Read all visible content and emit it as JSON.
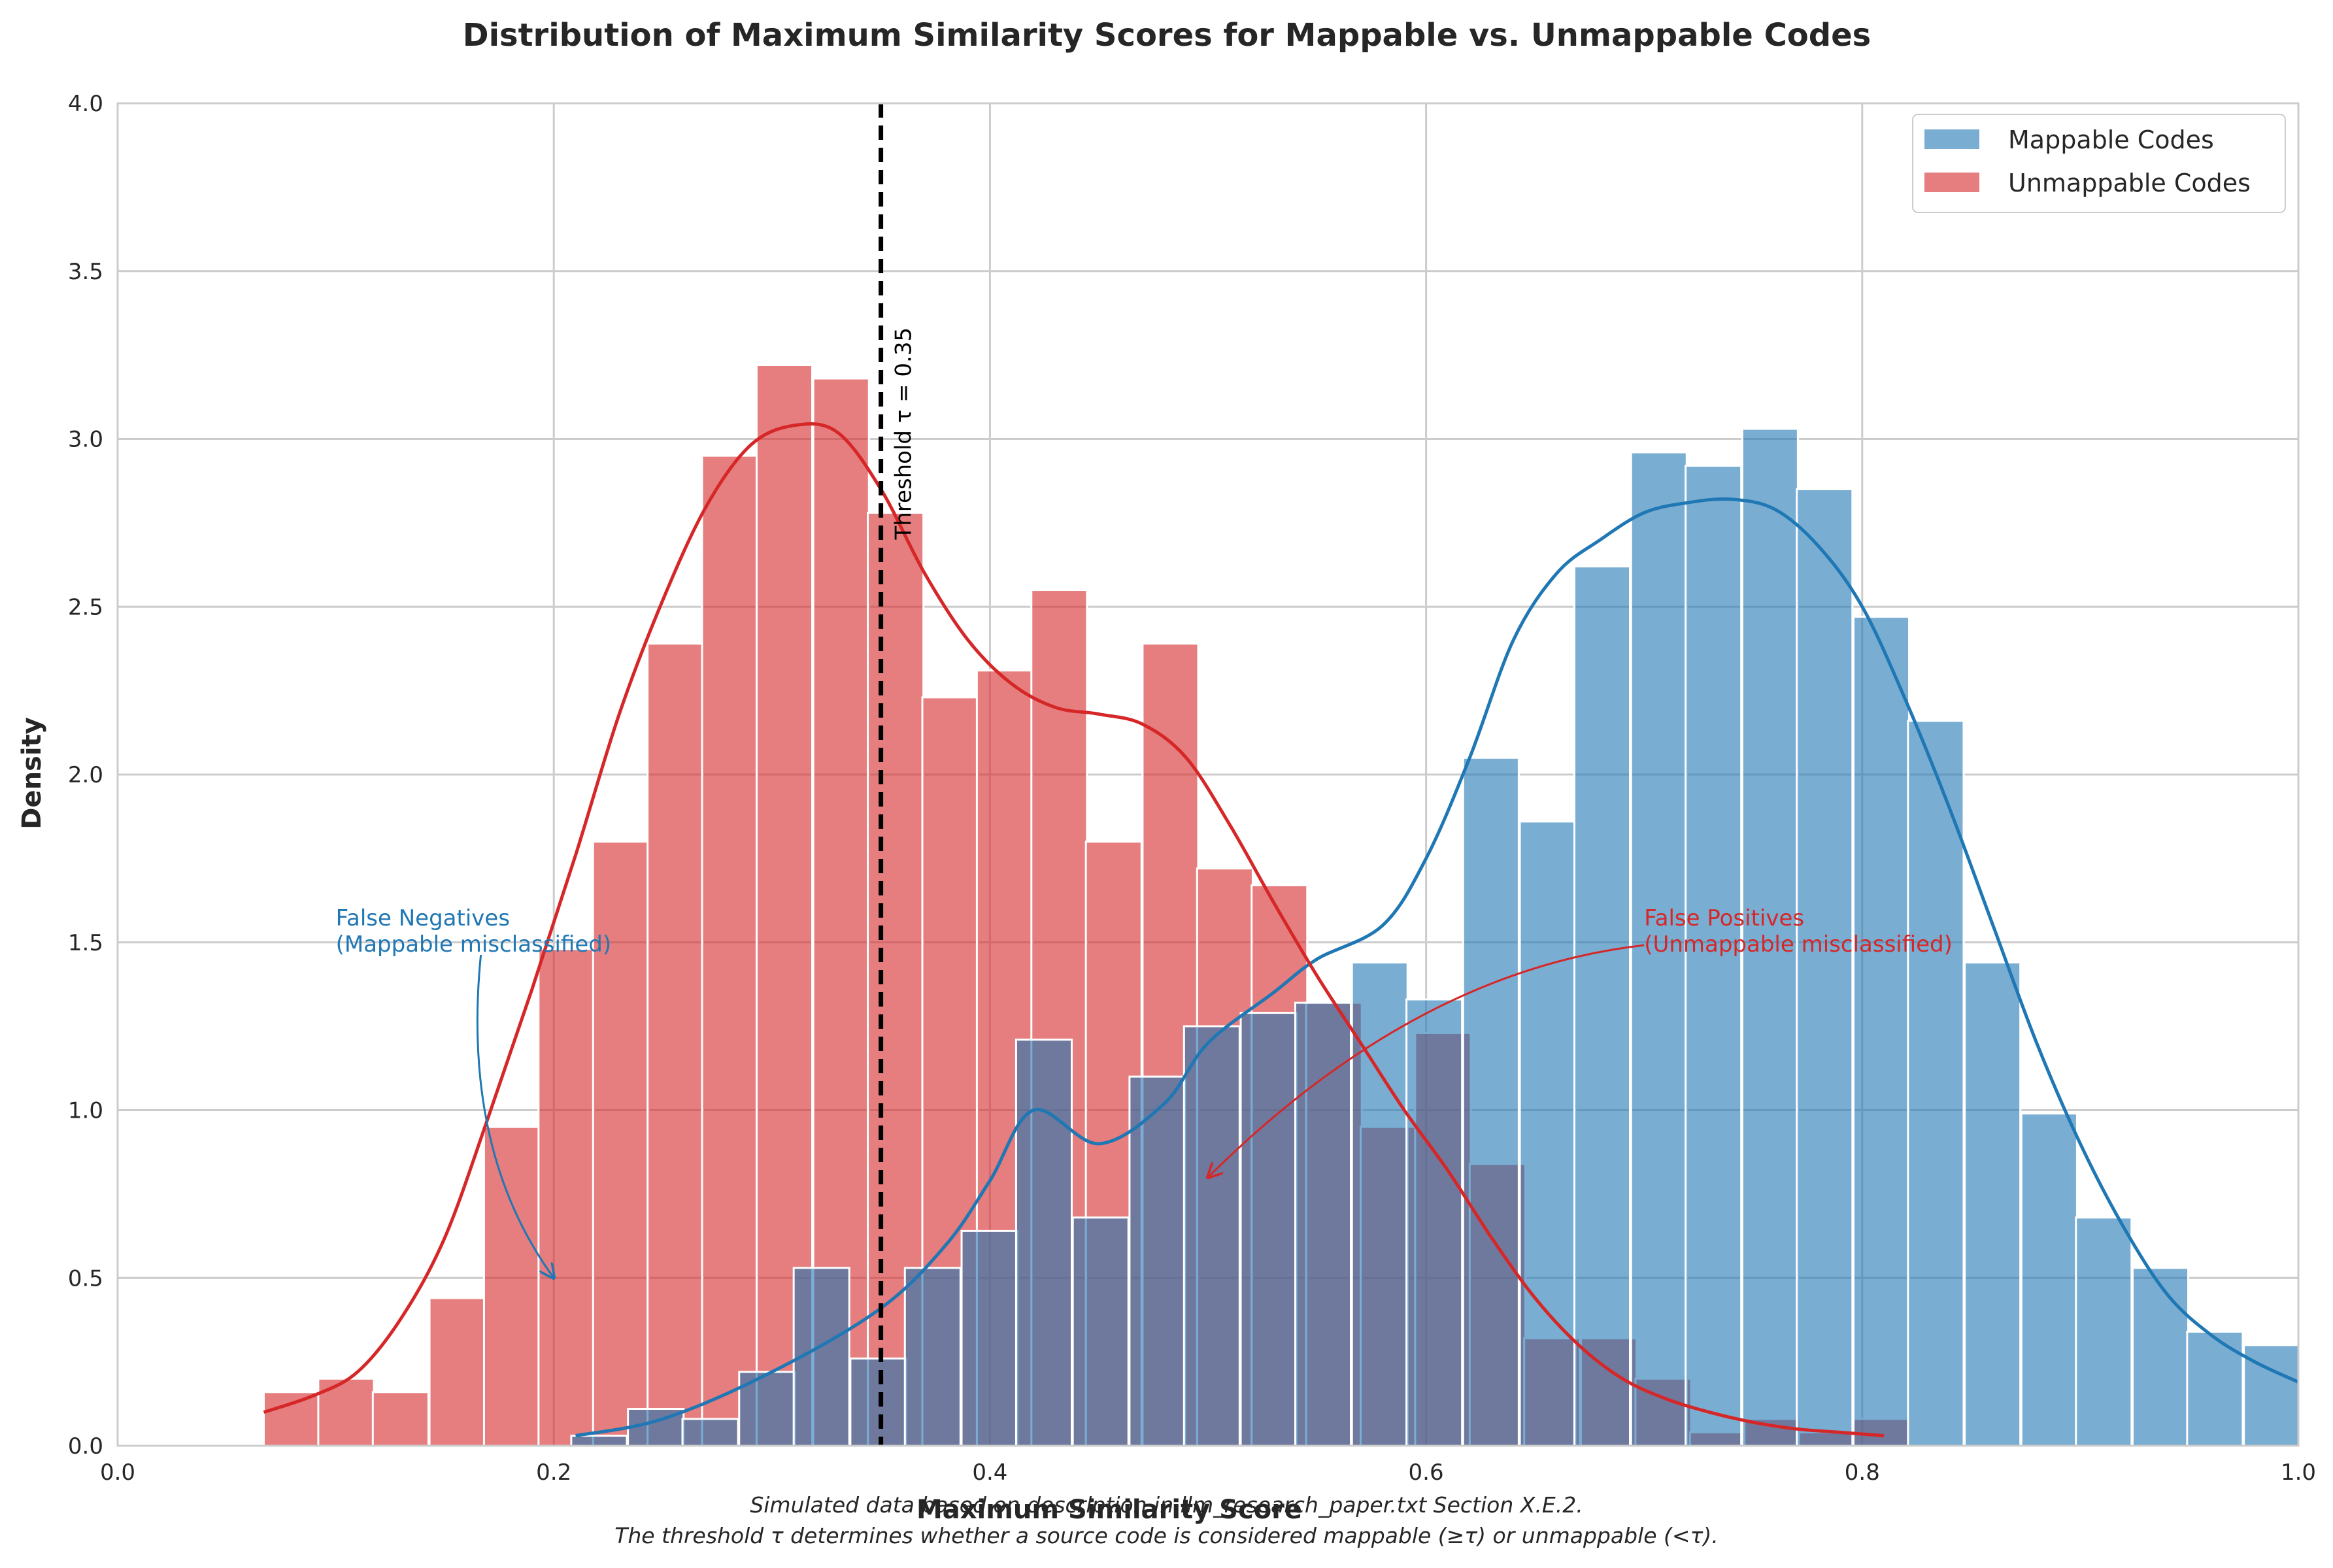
{
  "chart_data": {
    "type": "histogram",
    "title": "Distribution of Maximum Similarity Scores for Mappable vs. Unmappable Codes",
    "xlabel": "Maximum Similarity Score",
    "ylabel": "Density",
    "xlim": [
      0.0,
      1.0
    ],
    "ylim": [
      0.0,
      4.0
    ],
    "x_ticks": [
      "0.0",
      "0.2",
      "0.4",
      "0.6",
      "0.8",
      "1.0"
    ],
    "y_ticks": [
      "0.0",
      "0.5",
      "1.0",
      "1.5",
      "2.0",
      "2.5",
      "3.0",
      "3.5",
      "4.0"
    ],
    "grid": true,
    "legend_position": "top-right",
    "bin_width": 0.0255,
    "series": [
      {
        "name": "Mappable Codes",
        "color": "#1f77b4",
        "bar_alpha": 0.6,
        "bins_start": [
          0.208,
          0.234,
          0.259,
          0.285,
          0.31,
          0.336,
          0.361,
          0.387,
          0.412,
          0.438,
          0.464,
          0.489,
          0.515,
          0.54,
          0.566,
          0.591,
          0.617,
          0.643,
          0.668,
          0.694,
          0.719,
          0.745,
          0.77,
          0.796,
          0.821,
          0.847,
          0.873,
          0.898,
          0.924,
          0.949,
          0.975
        ],
        "density": [
          0.03,
          0.11,
          0.08,
          0.22,
          0.53,
          0.26,
          0.53,
          0.64,
          1.21,
          0.68,
          1.1,
          1.25,
          1.29,
          1.32,
          1.44,
          1.33,
          2.05,
          1.86,
          2.62,
          2.96,
          2.92,
          3.03,
          2.85,
          2.47,
          2.16,
          1.44,
          0.99,
          0.68,
          0.53,
          0.34,
          0.3
        ],
        "kde": [
          [
            0.21,
            0.03
          ],
          [
            0.25,
            0.08
          ],
          [
            0.3,
            0.22
          ],
          [
            0.35,
            0.41
          ],
          [
            0.38,
            0.6
          ],
          [
            0.4,
            0.79
          ],
          [
            0.42,
            1.0
          ],
          [
            0.45,
            0.9
          ],
          [
            0.48,
            1.02
          ],
          [
            0.5,
            1.2
          ],
          [
            0.53,
            1.35
          ],
          [
            0.55,
            1.45
          ],
          [
            0.58,
            1.55
          ],
          [
            0.6,
            1.75
          ],
          [
            0.62,
            2.05
          ],
          [
            0.64,
            2.4
          ],
          [
            0.66,
            2.6
          ],
          [
            0.68,
            2.7
          ],
          [
            0.7,
            2.78
          ],
          [
            0.72,
            2.81
          ],
          [
            0.74,
            2.82
          ],
          [
            0.76,
            2.79
          ],
          [
            0.78,
            2.68
          ],
          [
            0.8,
            2.5
          ],
          [
            0.82,
            2.22
          ],
          [
            0.84,
            1.9
          ],
          [
            0.86,
            1.55
          ],
          [
            0.88,
            1.2
          ],
          [
            0.9,
            0.9
          ],
          [
            0.92,
            0.65
          ],
          [
            0.94,
            0.45
          ],
          [
            0.96,
            0.33
          ],
          [
            0.98,
            0.25
          ],
          [
            1.0,
            0.19
          ]
        ]
      },
      {
        "name": "Unmappable Codes",
        "color": "#d62728",
        "bar_alpha": 0.6,
        "bins_start": [
          0.067,
          0.092,
          0.117,
          0.143,
          0.168,
          0.193,
          0.218,
          0.243,
          0.268,
          0.293,
          0.319,
          0.344,
          0.369,
          0.394,
          0.419,
          0.444,
          0.47,
          0.495,
          0.52,
          0.545,
          0.57,
          0.595,
          0.62,
          0.645,
          0.671,
          0.696,
          0.721,
          0.746,
          0.771,
          0.796
        ],
        "density": [
          0.16,
          0.2,
          0.16,
          0.44,
          0.95,
          1.48,
          1.8,
          2.39,
          2.95,
          3.22,
          3.18,
          2.78,
          2.23,
          2.31,
          2.55,
          1.8,
          2.39,
          1.72,
          1.67,
          1.32,
          0.95,
          1.23,
          0.84,
          0.32,
          0.32,
          0.2,
          0.04,
          0.08,
          0.04,
          0.08
        ],
        "kde": [
          [
            0.067,
            0.1
          ],
          [
            0.09,
            0.15
          ],
          [
            0.11,
            0.22
          ],
          [
            0.13,
            0.38
          ],
          [
            0.15,
            0.62
          ],
          [
            0.17,
            0.98
          ],
          [
            0.19,
            1.36
          ],
          [
            0.21,
            1.76
          ],
          [
            0.23,
            2.18
          ],
          [
            0.25,
            2.52
          ],
          [
            0.27,
            2.8
          ],
          [
            0.29,
            2.98
          ],
          [
            0.31,
            3.04
          ],
          [
            0.33,
            3.02
          ],
          [
            0.35,
            2.85
          ],
          [
            0.37,
            2.6
          ],
          [
            0.39,
            2.4
          ],
          [
            0.41,
            2.27
          ],
          [
            0.43,
            2.2
          ],
          [
            0.45,
            2.18
          ],
          [
            0.47,
            2.15
          ],
          [
            0.49,
            2.05
          ],
          [
            0.51,
            1.85
          ],
          [
            0.53,
            1.62
          ],
          [
            0.55,
            1.4
          ],
          [
            0.57,
            1.2
          ],
          [
            0.59,
            1.0
          ],
          [
            0.61,
            0.82
          ],
          [
            0.63,
            0.62
          ],
          [
            0.65,
            0.44
          ],
          [
            0.67,
            0.3
          ],
          [
            0.69,
            0.2
          ],
          [
            0.71,
            0.14
          ],
          [
            0.73,
            0.1
          ],
          [
            0.75,
            0.07
          ],
          [
            0.77,
            0.05
          ],
          [
            0.79,
            0.04
          ],
          [
            0.81,
            0.03
          ]
        ]
      }
    ],
    "threshold": {
      "value": 0.35,
      "label": "Threshold τ = 0.35"
    },
    "annotations": [
      {
        "text_lines": [
          "False Negatives",
          "(Mappable misclassified)"
        ],
        "color": "#1f77b4",
        "text_xy": [
          0.1,
          1.55
        ],
        "arrow_to": [
          0.2,
          0.5
        ]
      },
      {
        "text_lines": [
          "False Positives",
          "(Unmappable misclassified)"
        ],
        "color": "#d62728",
        "text_xy": [
          0.7,
          1.55
        ],
        "arrow_to": [
          0.5,
          0.8
        ]
      }
    ]
  },
  "footnote": {
    "line1": "Simulated data based on description in llm_research_paper.txt Section X.E.2.",
    "line2": "The threshold τ determines whether a source code is considered mappable (≥τ) or unmappable (<τ)."
  }
}
